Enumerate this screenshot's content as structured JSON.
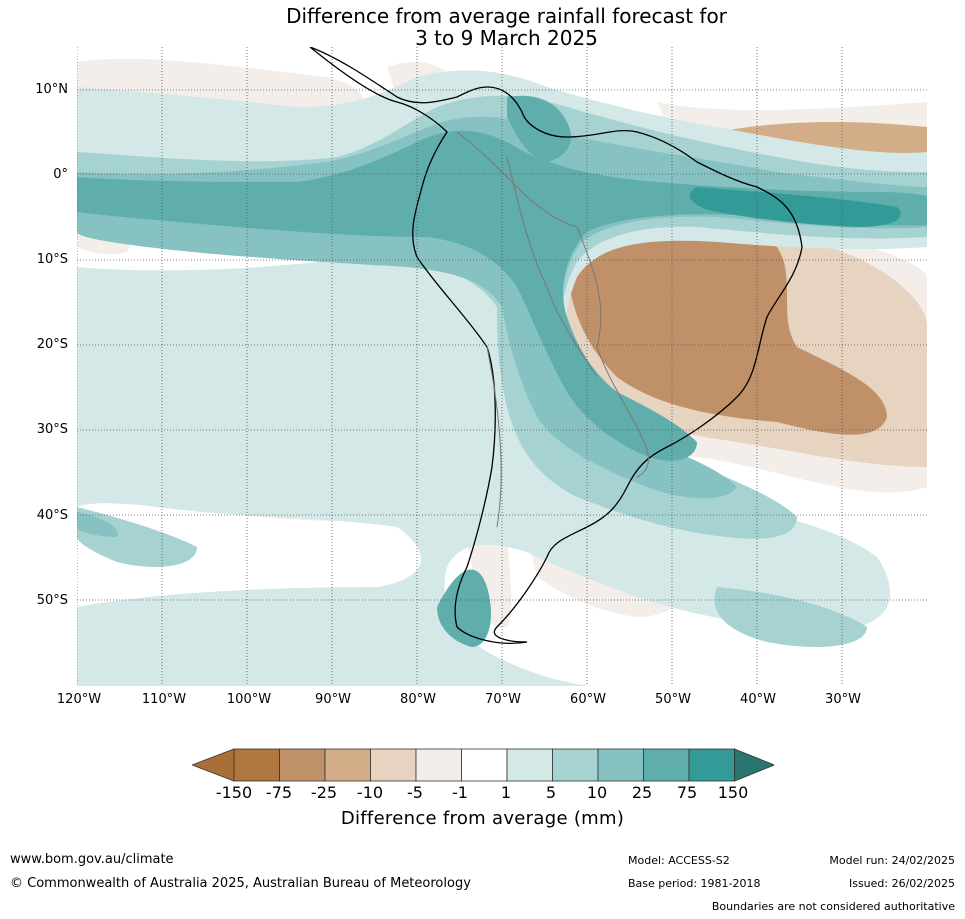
{
  "title": {
    "line1": "Difference from average rainfall forecast for",
    "line2": "3 to 9 March 2025"
  },
  "map": {
    "lat_labels": [
      "10°N",
      "0°",
      "10°S",
      "20°S",
      "30°S",
      "40°S",
      "50°S"
    ],
    "lon_labels": [
      "120°W",
      "110°W",
      "100°W",
      "90°W",
      "80°W",
      "70°W",
      "60°W",
      "50°W",
      "40°W",
      "30°W"
    ]
  },
  "legend": {
    "ticks": [
      "-150",
      "-75",
      "-25",
      "-10",
      "-5",
      "-1",
      "1",
      "5",
      "10",
      "25",
      "75",
      "150"
    ],
    "colors": [
      "#a86f38",
      "#b07840",
      "#c09068",
      "#d3ac88",
      "#e6d3c0",
      "#f3eee9",
      "#ffffff",
      "#d3e8e7",
      "#a6d3d2",
      "#86c2c1",
      "#5faeac",
      "#339b97",
      "#2a7570"
    ],
    "label": "Difference from average (mm)"
  },
  "footer": {
    "website": "www.bom.gov.au/climate",
    "copyright": "© Commonwealth of Australia 2025, Australian Bureau of Meteorology",
    "model": "Model: ACCESS-S2",
    "base_period": "Base period: 1981-2018",
    "model_run": "Model run: 24/02/2025",
    "issued": "Issued: 26/02/2025",
    "boundaries": "Boundaries are not considered authoritative"
  }
}
